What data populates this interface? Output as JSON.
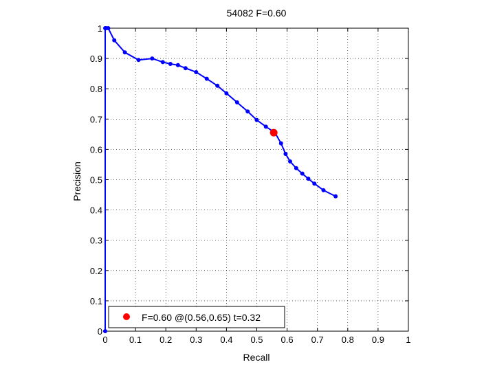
{
  "chart_data": {
    "type": "line",
    "title": "54082 F=0.60",
    "xlabel": "Recall",
    "ylabel": "Precision",
    "xlim": [
      0,
      1
    ],
    "ylim": [
      0,
      1
    ],
    "xticks": [
      "0",
      "0.1",
      "0.2",
      "0.3",
      "0.4",
      "0.5",
      "0.6",
      "0.7",
      "0.8",
      "0.9",
      "1"
    ],
    "yticks": [
      "0",
      "0.1",
      "0.2",
      "0.3",
      "0.4",
      "0.5",
      "0.6",
      "0.7",
      "0.8",
      "0.9",
      "1"
    ],
    "grid": true,
    "legend_position": "bottom-left",
    "series": [
      {
        "color": "#0000ff",
        "x": [
          0,
          0,
          0.003,
          0.01,
          0.03,
          0.065,
          0.11,
          0.155,
          0.19,
          0.215,
          0.24,
          0.265,
          0.3,
          0.335,
          0.37,
          0.4,
          0.435,
          0.47,
          0.5,
          0.53,
          0.56,
          0.58,
          0.595,
          0.61,
          0.63,
          0.65,
          0.67,
          0.69,
          0.72,
          0.76
        ],
        "y": [
          0,
          1,
          1,
          1,
          0.96,
          0.92,
          0.895,
          0.9,
          0.888,
          0.882,
          0.878,
          0.868,
          0.855,
          0.833,
          0.81,
          0.785,
          0.755,
          0.725,
          0.697,
          0.675,
          0.655,
          0.62,
          0.585,
          0.56,
          0.538,
          0.52,
          0.503,
          0.487,
          0.465,
          0.445
        ]
      }
    ],
    "best_point": {
      "x": 0.556,
      "y": 0.655,
      "color": "#ff0000"
    },
    "legend_text": "F=0.60 @(0.56,0.65) t=0.32"
  }
}
